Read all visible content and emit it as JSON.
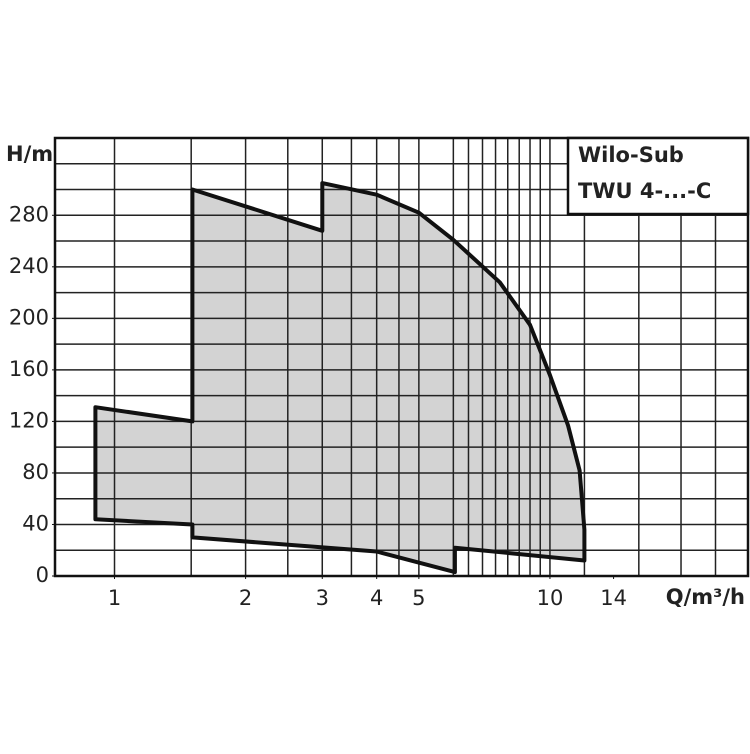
{
  "chart_data": {
    "type": "region",
    "title_lines": [
      "Wilo-Sub",
      "TWU 4-...-C"
    ],
    "y_label": "H/m",
    "x_label": "Q/m³/h",
    "xscale": "log",
    "xlim": [
      0.73,
      28.5
    ],
    "ylim": [
      0,
      340
    ],
    "xticks": [
      1,
      2,
      3,
      4,
      5,
      10,
      14
    ],
    "yticks": [
      0,
      40,
      80,
      120,
      160,
      200,
      240,
      280
    ],
    "xgrid": [
      1,
      1.5,
      2,
      2.5,
      3,
      3.5,
      4,
      4.5,
      5,
      6,
      6.5,
      7,
      7.5,
      8,
      8.5,
      9,
      9.5,
      10,
      12,
      16,
      20,
      24
    ],
    "ygrid": [
      20,
      40,
      60,
      80,
      100,
      120,
      140,
      160,
      180,
      200,
      220,
      240,
      260,
      280,
      300,
      320
    ],
    "grid": true,
    "series": [
      {
        "color": "#d3d3d3",
        "x": [
          0.904,
          1.51,
          1.51,
          3.0,
          3.0,
          4,
          5,
          6,
          7.67,
          9,
          10,
          11,
          11.7,
          12.0,
          12.0,
          6.05,
          6.05,
          4,
          1.51,
          1.51,
          0.904
        ],
        "values": [
          131,
          120,
          300,
          268,
          305,
          296,
          282,
          261,
          228,
          195,
          156,
          117,
          82,
          36,
          12,
          22,
          3,
          19,
          30,
          40,
          44
        ]
      }
    ]
  }
}
